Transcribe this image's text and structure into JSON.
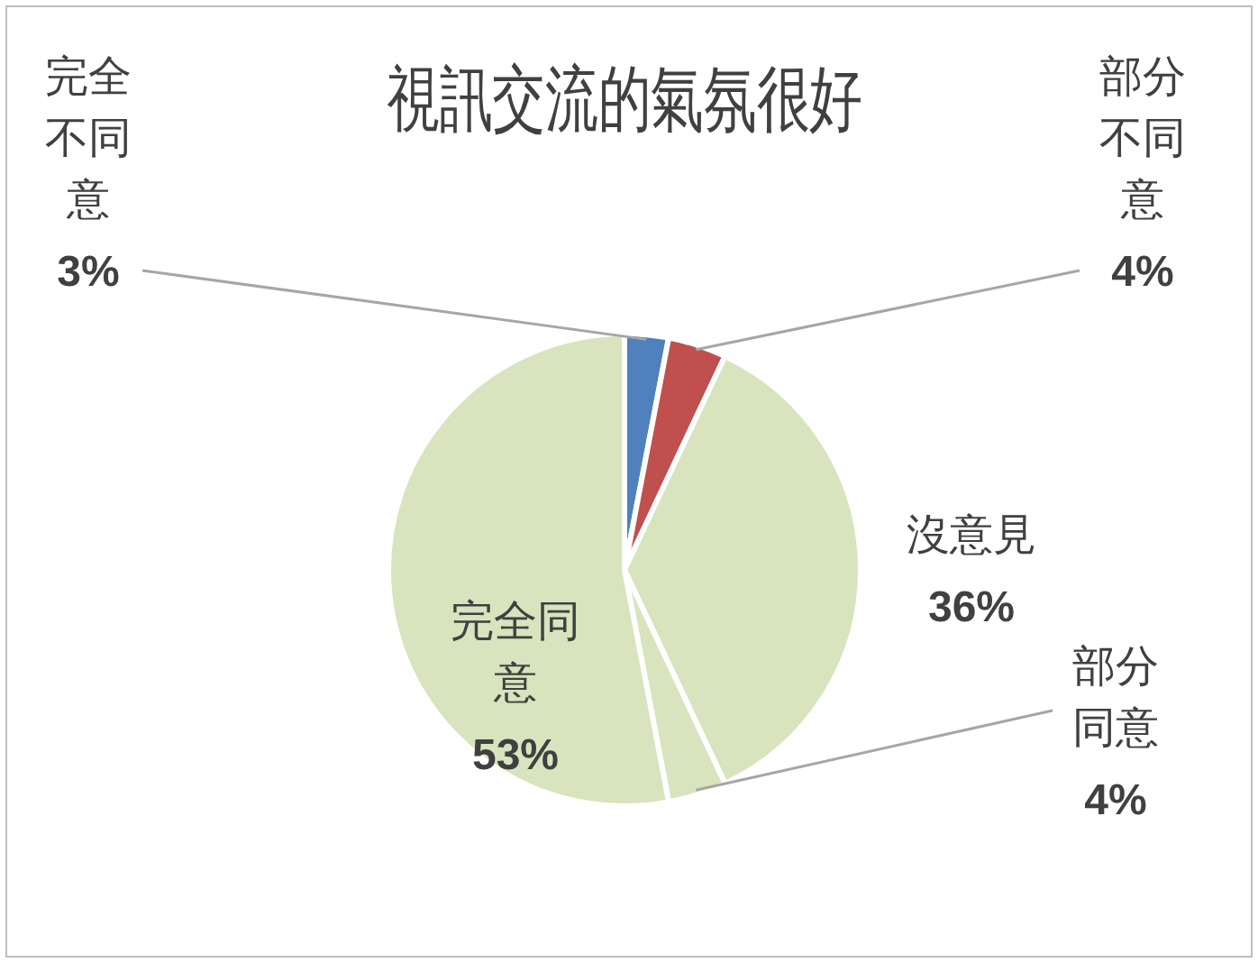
{
  "chart_data": {
    "type": "pie",
    "title": "視訊交流的氣氛很好",
    "categories": [
      "完全不同意",
      "部分不同意",
      "沒意見",
      "部分同意",
      "完全同意"
    ],
    "values": [
      3,
      4,
      36,
      4,
      53
    ],
    "colors": [
      "#4f81bd",
      "#c0504d",
      "#d7e4bd",
      "#d7e4bd",
      "#d7e4bd"
    ],
    "value_labels": [
      "3%",
      "4%",
      "36%",
      "4%",
      "53%"
    ],
    "legend": false
  }
}
